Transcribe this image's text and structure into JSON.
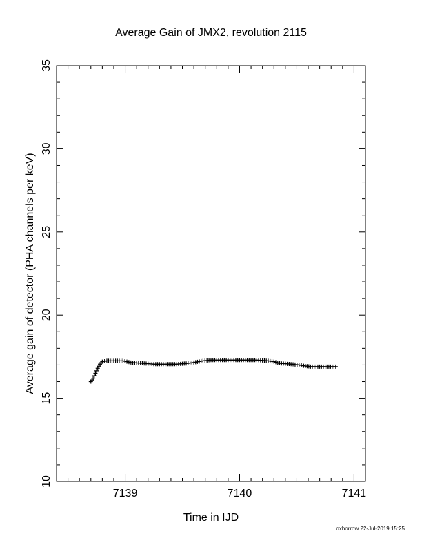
{
  "chart_data": {
    "type": "scatter",
    "title": "Average Gain of JMX2, revolution 2115",
    "xlabel": "Time in IJD",
    "ylabel": "Average gain of detector (PHA channels per keV)",
    "xlim": [
      7138.4,
      7141.1
    ],
    "ylim": [
      10,
      35
    ],
    "xticks": [
      7139,
      7140,
      7141
    ],
    "yticks": [
      10,
      15,
      20,
      25,
      30,
      35
    ],
    "grid": false,
    "marker": "plus",
    "series": [
      {
        "points": [
          [
            7138.7,
            16.0
          ],
          [
            7138.72,
            16.2
          ],
          [
            7138.74,
            16.5
          ],
          [
            7138.76,
            16.8
          ],
          [
            7138.78,
            17.05
          ],
          [
            7138.8,
            17.2
          ],
          [
            7138.84,
            17.25
          ],
          [
            7138.9,
            17.25
          ],
          [
            7138.98,
            17.25
          ],
          [
            7139.05,
            17.15
          ],
          [
            7139.15,
            17.1
          ],
          [
            7139.25,
            17.05
          ],
          [
            7139.35,
            17.05
          ],
          [
            7139.45,
            17.05
          ],
          [
            7139.55,
            17.1
          ],
          [
            7139.6,
            17.15
          ],
          [
            7139.68,
            17.25
          ],
          [
            7139.75,
            17.3
          ],
          [
            7139.85,
            17.3
          ],
          [
            7139.95,
            17.3
          ],
          [
            7140.05,
            17.3
          ],
          [
            7140.15,
            17.3
          ],
          [
            7140.25,
            17.25
          ],
          [
            7140.3,
            17.2
          ],
          [
            7140.35,
            17.1
          ],
          [
            7140.45,
            17.05
          ],
          [
            7140.52,
            17.0
          ],
          [
            7140.56,
            16.95
          ],
          [
            7140.62,
            16.9
          ],
          [
            7140.7,
            16.9
          ],
          [
            7140.78,
            16.9
          ],
          [
            7140.84,
            16.9
          ]
        ]
      }
    ]
  },
  "footer": "oxborrow 22-Jul-2019 15:25"
}
